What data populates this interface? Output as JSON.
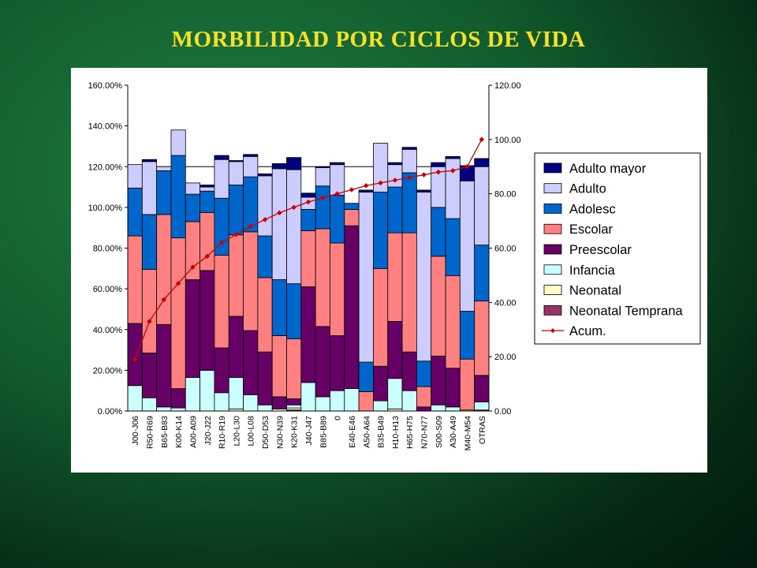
{
  "slide": {
    "title": "MORBILIDAD POR CICLOS DE VIDA"
  },
  "colors": {
    "Neonatal Temprana": "#993366",
    "Neonatal": "#ffffcc",
    "Infancia": "#ccffff",
    "Preescolar": "#660066",
    "Escolar": "#ff8080",
    "Adolesc": "#0066cc",
    "Adulto": "#ccccff",
    "Adulto mayor": "#000080",
    "Acum.": "#cc0000"
  },
  "chart_data": {
    "type": "bar",
    "stacked": true,
    "categories": [
      "J00-J06",
      "R50-R69",
      "B65-B83",
      "K00-K14",
      "A00-A09",
      "J20-J22",
      "R10-R19",
      "L20-L30",
      "L00-L08",
      "D50-D53",
      "N30-N39",
      "K20-K31",
      "J40-J47",
      "B85-B89",
      "0",
      "E40-E46",
      "A50-A64",
      "B35-B49",
      "H10-H13",
      "H65-H75",
      "N70-N77",
      "S00-S09",
      "A30-A49",
      "M40-M54",
      "OTRAS"
    ],
    "series": [
      {
        "name": "Neonatal Temprana",
        "values": [
          0,
          0,
          0,
          0,
          0,
          0,
          0,
          0,
          0,
          0,
          0,
          0.5,
          0,
          0,
          0,
          0,
          0,
          0,
          0,
          0,
          0,
          0,
          0,
          0,
          0.5
        ]
      },
      {
        "name": "Neonatal",
        "values": [
          0,
          0,
          0,
          0,
          0,
          0,
          0,
          1,
          0,
          0,
          1,
          1,
          0,
          0,
          0,
          0,
          0,
          0,
          1,
          0,
          0,
          0,
          0,
          0.5,
          0
        ]
      },
      {
        "name": "Infancia",
        "values": [
          12.5,
          6.5,
          2,
          1.5,
          16.5,
          20,
          9,
          15.5,
          8,
          3,
          0,
          1.5,
          14,
          7,
          10,
          11,
          0,
          5,
          15,
          10,
          0,
          3,
          2,
          0,
          4
        ]
      },
      {
        "name": "Preescolar",
        "values": [
          30.5,
          22,
          40.5,
          9.5,
          48,
          49,
          22,
          30,
          31.5,
          26,
          6,
          3,
          47,
          34.5,
          27,
          80,
          0,
          17,
          28,
          19,
          2,
          24,
          19,
          0,
          13
        ]
      },
      {
        "name": "Escolar",
        "values": [
          43,
          41,
          54,
          74,
          28.5,
          28.5,
          45.5,
          40,
          48.5,
          36.5,
          30,
          29.5,
          27.5,
          48,
          45.5,
          8,
          9.5,
          48,
          43.5,
          58.5,
          10,
          49,
          45.5,
          25,
          36.5
        ]
      },
      {
        "name": "Adolesc",
        "values": [
          23.5,
          27,
          21.5,
          40.5,
          13.5,
          10.5,
          28,
          24.5,
          27,
          20.5,
          27.5,
          27,
          10.5,
          21,
          23.5,
          3,
          14.5,
          37.5,
          22.5,
          29.5,
          12.5,
          24,
          28,
          23.5,
          27.5
        ]
      },
      {
        "name": "Adulto",
        "values": [
          11.5,
          26,
          2,
          12.5,
          5.5,
          2,
          19,
          11.5,
          10,
          29.5,
          54.5,
          56,
          6,
          9,
          15,
          0,
          83.5,
          24,
          11,
          11.5,
          83,
          20,
          29.5,
          64,
          38.5
        ]
      },
      {
        "name": "Adulto mayor",
        "values": [
          0,
          1,
          0,
          0,
          0,
          1,
          2,
          0.5,
          1,
          1,
          2.5,
          6,
          2,
          0.5,
          1,
          0,
          1,
          0,
          1,
          1,
          1,
          2,
          1,
          7.5,
          4
        ]
      }
    ],
    "line": {
      "name": "Acum.",
      "axis": "right",
      "values": [
        19,
        33,
        41,
        47,
        53,
        57,
        62,
        65,
        68,
        70.5,
        73,
        75,
        77,
        78.5,
        80,
        81.5,
        83,
        84,
        85,
        86,
        87,
        88,
        88.5,
        90,
        100
      ]
    },
    "y_left": {
      "ticks": [
        "0.00%",
        "20.00%",
        "40.00%",
        "60.00%",
        "80.00%",
        "100.00%",
        "120.00%",
        "140.00%",
        "160.00%"
      ],
      "range": [
        0,
        160
      ]
    },
    "y_right": {
      "ticks": [
        "0.00",
        "20.00",
        "40.00",
        "60.00",
        "80.00",
        "100.00",
        "120.00"
      ],
      "range": [
        0,
        120
      ]
    },
    "grid_lines": [
      120
    ],
    "legend": {
      "placement": "right",
      "items": [
        "Adulto mayor",
        "Adulto",
        "Adolesc",
        "Escolar",
        "Preescolar",
        "Infancia",
        "Neonatal",
        "Neonatal Temprana",
        "Acum."
      ]
    }
  }
}
